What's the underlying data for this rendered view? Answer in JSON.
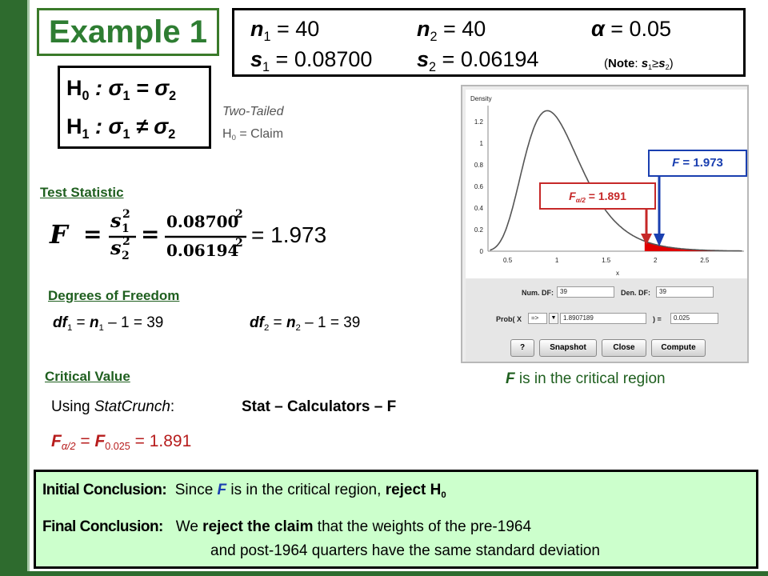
{
  "title": "Example 1",
  "params": {
    "n1_sym": "n",
    "n1_sub": "1",
    "n1_val": " = 40",
    "n2_sym": "n",
    "n2_sub": "2",
    "n2_val": " = 40",
    "alpha_sym": "α",
    "alpha_val": " = 0.05",
    "s1_sym": "s",
    "s1_sub": "1",
    "s1_val": " = 0.08700",
    "s2_sym": "s",
    "s2_sub": "2",
    "s2_val": " = 0.06194",
    "note_open": "(",
    "note_label": "Note",
    "note_colon": ": ",
    "note_s1": "s",
    "note_s1_sub": "1",
    "note_ge": "≥",
    "note_s2": "s",
    "note_s2_sub": "2",
    "note_close": ")"
  },
  "hypotheses": {
    "h0_label": "H",
    "h0_sub": "0",
    "h0_text": " : σ",
    "h0_sub2": "1",
    "h0_rel": " = σ",
    "h0_sub3": "2",
    "h1_label": "H",
    "h1_sub": "1",
    "h1_text": " : σ",
    "h1_sub2": "1",
    "h1_rel": " ≠ σ",
    "h1_sub3": "2"
  },
  "test_type": "Two-Tailed",
  "claim": {
    "h": "H",
    "sub": "0",
    "text": " = Claim"
  },
  "test_statistic": {
    "label": "Test Statistic",
    "F": "F",
    "eq": "=",
    "num_s": "s",
    "num_sub": "1",
    "num_sup": "2",
    "den_s": "s",
    "den_sub": "2",
    "den_sup": "2",
    "num_val": "0.08700",
    "num_val_sup": "2",
    "den_val": "0.06194",
    "den_val_sup": "2",
    "result": "= 1.973"
  },
  "dof": {
    "label": "Degrees of Freedom",
    "df1_a": "df",
    "df1_sub": "1",
    "df1_b": " = ",
    "df1_n": "n",
    "df1_nsub": "1",
    "df1_c": " – 1 = 39",
    "df2_a": "df",
    "df2_sub": "2",
    "df2_b": " = ",
    "df2_n": "n",
    "df2_nsub": "2",
    "df2_c": " – 1 = 39"
  },
  "critical_value": {
    "label": "Critical Value",
    "using": "Using ",
    "tool": "StatCrunch",
    "colon": ":",
    "path": "Stat – Calculators – F",
    "f_a": "F",
    "f_a_sub": "α/2",
    "f_b": " = ",
    "f_c": "F",
    "f_c_sub": "0.025",
    "f_d": " = 1.891"
  },
  "statcrunch": {
    "density_label": "Density",
    "x_label": "x",
    "y_ticks": [
      "1.2",
      "1",
      "0.8",
      "0.6",
      "0.4",
      "0.2",
      "0"
    ],
    "x_ticks": [
      "0.5",
      "1",
      "1.5",
      "2",
      "2.5"
    ],
    "num_df_label": "Num. DF:",
    "num_df_value": "39",
    "den_df_label": "Den. DF:",
    "den_df_value": "39",
    "prob_label": "Prob( X",
    "operator": "=>",
    "prob_x_value": "1.8907189",
    "prob_eq": ") =",
    "prob_value": "0.025",
    "buttons": [
      "?",
      "Snapshot",
      "Close",
      "Compute"
    ],
    "curve_color": "#555555",
    "tail_color": "#e00000"
  },
  "callouts": {
    "f_label": "F",
    "f_value": " = 1.973",
    "fcrit_label": "F",
    "fcrit_sub": "α/2",
    "fcrit_value": " = 1.891",
    "region_f": "F",
    "region_text": " is in the critical region"
  },
  "conclusion": {
    "initial_label": "Initial Conclusion:",
    "initial_a": "Since ",
    "initial_f": "F",
    "initial_b": " is in the critical region, ",
    "initial_c": "reject H",
    "initial_sub": "0",
    "final_label": "Final Conclusion:",
    "final_a": "We ",
    "final_b": "reject the claim",
    "final_c": " that the weights of the pre-1964",
    "final_line2": "and post-1964 quarters have the same standard deviation"
  },
  "colors": {
    "green": "#2e6b2e",
    "title_green": "#2e7d32",
    "blue": "#1a3fb0",
    "red": "#c62828",
    "conclusion_bg": "#ccffcc"
  }
}
